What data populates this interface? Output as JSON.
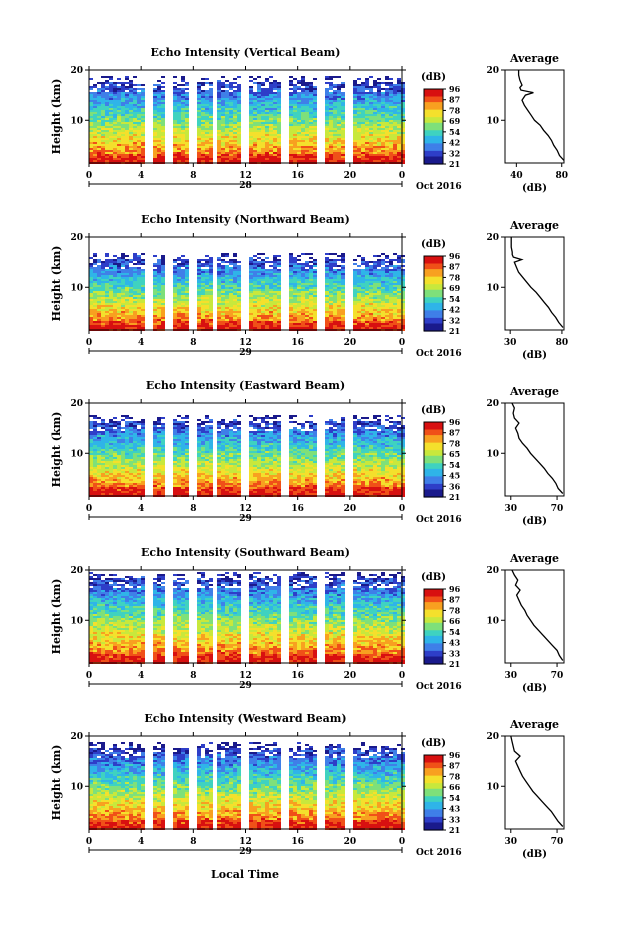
{
  "chart_data": [
    {
      "type": "heatmap",
      "title": "Echo Intensity (Vertical Beam)",
      "ylabel": "Height (km)",
      "yticks": [
        "20",
        "10"
      ],
      "ylim": [
        1.5,
        20
      ],
      "xticks": [
        "0",
        "4",
        "8",
        "12",
        "16",
        "20",
        "0"
      ],
      "xlim": [
        0,
        24
      ],
      "date_day": "28",
      "date_month": "Oct 2016",
      "colorbar_unit": "(dB)",
      "colorbar_ticks": [
        "96",
        "87",
        "78",
        "69",
        "54",
        "42",
        "32",
        "21"
      ],
      "data_gaps_hours": [
        [
          4.2,
          4.8
        ],
        [
          5.8,
          6.4
        ],
        [
          7.8,
          8.3
        ],
        [
          9.4,
          9.9
        ],
        [
          11.7,
          12.2
        ],
        [
          14.7,
          15.2
        ],
        [
          17.5,
          18.1
        ],
        [
          19.6,
          20.1
        ]
      ],
      "top_height_km": 17.5,
      "average_profile": {
        "title": "Average",
        "xlabel": "(dB)",
        "xticks": [
          "40",
          "80"
        ],
        "xlim": [
          30,
          82
        ],
        "yticks": [
          "20",
          "10"
        ],
        "ylim": [
          1.5,
          20
        ],
        "height_km": [
          2,
          3,
          4,
          5,
          6,
          7,
          8,
          9,
          10,
          11,
          12,
          13,
          14,
          15,
          15.5,
          16,
          16.5,
          17,
          18,
          19,
          20
        ],
        "db": [
          82,
          78,
          76,
          73,
          71,
          68,
          64,
          61,
          56,
          53,
          50,
          47,
          45,
          48,
          55,
          44,
          43,
          45,
          43,
          42,
          42
        ]
      }
    },
    {
      "type": "heatmap",
      "title": "Echo Intensity (Northward Beam)",
      "ylabel": "Height (km)",
      "yticks": [
        "20",
        "10"
      ],
      "ylim": [
        1.5,
        20
      ],
      "xticks": [
        "0",
        "4",
        "8",
        "12",
        "16",
        "20",
        "0"
      ],
      "xlim": [
        0,
        24
      ],
      "date_day": "29",
      "date_month": "Oct 2016",
      "colorbar_unit": "(dB)",
      "colorbar_ticks": [
        "96",
        "87",
        "78",
        "69",
        "54",
        "42",
        "32",
        "21"
      ],
      "data_gaps_hours": [
        [
          4.2,
          4.8
        ],
        [
          5.8,
          6.4
        ],
        [
          7.8,
          8.3
        ],
        [
          9.4,
          9.9
        ],
        [
          11.7,
          12.2
        ],
        [
          14.7,
          15.2
        ],
        [
          17.5,
          18.1
        ],
        [
          19.6,
          20.1
        ]
      ],
      "top_height_km": 15.8,
      "average_profile": {
        "title": "Average",
        "xlabel": "(dB)",
        "xticks": [
          "30",
          "80"
        ],
        "xlim": [
          25,
          82
        ],
        "yticks": [
          "20",
          "10"
        ],
        "ylim": [
          1.5,
          20
        ],
        "height_km": [
          2,
          3,
          4,
          5,
          6,
          7,
          8,
          9,
          10,
          11,
          12,
          13,
          14,
          15,
          15.5,
          16,
          16.5,
          17,
          18,
          19,
          20
        ],
        "db": [
          81,
          77,
          74,
          70,
          67,
          63,
          59,
          55,
          50,
          46,
          42,
          38,
          36,
          34,
          41,
          33,
          32,
          32,
          31,
          31,
          31
        ]
      }
    },
    {
      "type": "heatmap",
      "title": "Echo Intensity (Eastward Beam)",
      "ylabel": "Height (km)",
      "yticks": [
        "20",
        "10"
      ],
      "ylim": [
        1.5,
        20
      ],
      "xticks": [
        "0",
        "4",
        "8",
        "12",
        "16",
        "20",
        "0"
      ],
      "xlim": [
        0,
        24
      ],
      "date_day": "29",
      "date_month": "Oct 2016",
      "colorbar_unit": "(dB)",
      "colorbar_ticks": [
        "96",
        "87",
        "78",
        "65",
        "54",
        "45",
        "36",
        "21"
      ],
      "data_gaps_hours": [
        [
          4.2,
          4.8
        ],
        [
          5.8,
          6.4
        ],
        [
          7.8,
          8.3
        ],
        [
          9.4,
          9.9
        ],
        [
          11.7,
          12.2
        ],
        [
          14.7,
          15.2
        ],
        [
          17.5,
          18.1
        ],
        [
          19.6,
          20.1
        ]
      ],
      "top_height_km": 16.5,
      "average_profile": {
        "title": "Average",
        "xlabel": "(dB)",
        "xticks": [
          "30",
          "70"
        ],
        "xlim": [
          25,
          76
        ],
        "yticks": [
          "20",
          "10"
        ],
        "ylim": [
          1.5,
          20
        ],
        "height_km": [
          2,
          3,
          4,
          5,
          6,
          7,
          8,
          9,
          10,
          11,
          12,
          13,
          14,
          15,
          16,
          17,
          18,
          19,
          20
        ],
        "db": [
          75,
          71,
          69,
          66,
          62,
          59,
          55,
          51,
          47,
          44,
          40,
          37,
          36,
          34,
          37,
          33,
          32,
          33,
          31
        ]
      }
    },
    {
      "type": "heatmap",
      "title": "Echo Intensity (Southward Beam)",
      "ylabel": "Height (km)",
      "yticks": [
        "20",
        "10"
      ],
      "ylim": [
        1.5,
        20
      ],
      "xticks": [
        "0",
        "4",
        "8",
        "12",
        "16",
        "20",
        "0"
      ],
      "xlim": [
        0,
        24
      ],
      "date_day": "29",
      "date_month": "Oct 2016",
      "colorbar_unit": "(dB)",
      "colorbar_ticks": [
        "96",
        "87",
        "78",
        "66",
        "54",
        "43",
        "33",
        "21"
      ],
      "data_gaps_hours": [
        [
          4.2,
          4.8
        ],
        [
          5.8,
          6.4
        ],
        [
          7.8,
          8.3
        ],
        [
          9.4,
          9.9
        ],
        [
          11.7,
          12.2
        ],
        [
          14.7,
          15.2
        ],
        [
          17.5,
          18.1
        ],
        [
          19.6,
          20.1
        ]
      ],
      "top_height_km": 18.5,
      "average_profile": {
        "title": "Average",
        "xlabel": "(dB)",
        "xticks": [
          "30",
          "70"
        ],
        "xlim": [
          25,
          76
        ],
        "yticks": [
          "20",
          "10"
        ],
        "ylim": [
          1.5,
          20
        ],
        "height_km": [
          2,
          3,
          4,
          5,
          6,
          7,
          8,
          9,
          10,
          11,
          12,
          13,
          14,
          15,
          16,
          17,
          18,
          19,
          20
        ],
        "db": [
          75,
          72,
          70,
          66,
          62,
          58,
          54,
          50,
          47,
          44,
          42,
          39,
          37,
          35,
          38,
          34,
          36,
          33,
          31
        ]
      }
    },
    {
      "type": "heatmap",
      "title": "Echo Intensity (Westward Beam)",
      "ylabel": "Height (km)",
      "yticks": [
        "20",
        "10"
      ],
      "ylim": [
        1.5,
        20
      ],
      "xticks": [
        "0",
        "4",
        "8",
        "12",
        "16",
        "20",
        "0"
      ],
      "xlim": [
        0,
        24
      ],
      "date_day": "29",
      "date_month": "Oct 2016",
      "colorbar_unit": "(dB)",
      "colorbar_ticks": [
        "96",
        "87",
        "78",
        "66",
        "54",
        "43",
        "33",
        "21"
      ],
      "data_gaps_hours": [
        [
          4.2,
          4.8
        ],
        [
          5.8,
          6.4
        ],
        [
          7.8,
          8.3
        ],
        [
          9.4,
          9.9
        ],
        [
          11.7,
          12.2
        ],
        [
          14.7,
          15.2
        ],
        [
          17.5,
          18.1
        ],
        [
          19.6,
          20.1
        ]
      ],
      "top_height_km": 17.5,
      "average_profile": {
        "title": "Average",
        "xlabel": "(dB)",
        "xticks": [
          "30",
          "70"
        ],
        "xlim": [
          25,
          76
        ],
        "yticks": [
          "20",
          "10"
        ],
        "ylim": [
          1.5,
          20
        ],
        "height_km": [
          2,
          3,
          4,
          5,
          6,
          7,
          8,
          9,
          10,
          11,
          12,
          13,
          14,
          15,
          16,
          17,
          18,
          19,
          20
        ],
        "db": [
          75,
          71,
          68,
          65,
          61,
          57,
          53,
          49,
          46,
          43,
          40,
          38,
          36,
          34,
          38,
          33,
          32,
          31,
          30
        ]
      }
    }
  ],
  "x_axis_label": "Local Time",
  "colormap": [
    "#1a1a8c",
    "#2e3ec8",
    "#3f7fe8",
    "#2fb4e8",
    "#3fd2c0",
    "#7ee07a",
    "#c8e83c",
    "#f4e02c",
    "#f8a020",
    "#f05018",
    "#d81010"
  ]
}
